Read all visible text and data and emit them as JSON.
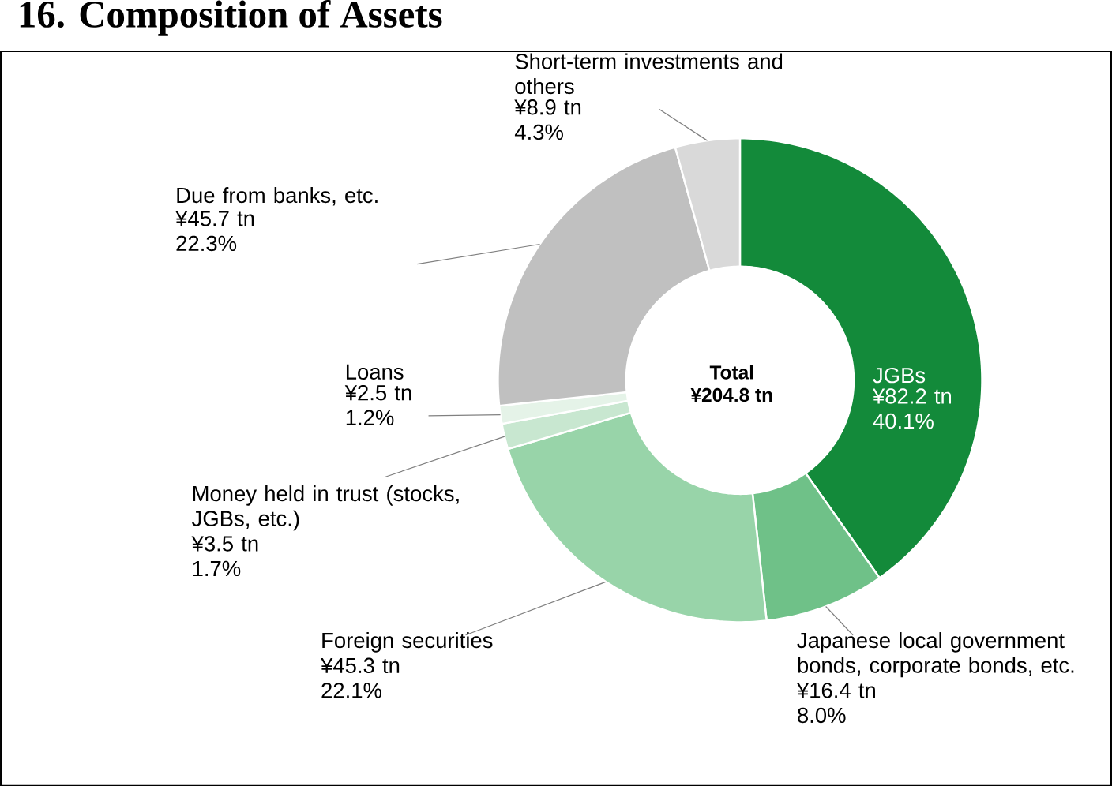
{
  "chart_data": {
    "type": "donut",
    "title": "16. Composition of Assets",
    "categories": [
      "JGBs",
      "Japanese local government bonds, corporate bonds, etc.",
      "Foreign securities",
      "Money held in trust (stocks, JGBs, etc.)",
      "Loans",
      "Due from banks, etc.",
      "Short-term investments and others"
    ],
    "values": [
      40.1,
      8.0,
      22.1,
      1.7,
      1.2,
      22.3,
      4.3
    ],
    "value_labels": [
      "¥82.2 tn 40.1%",
      "¥16.4 tn 8.0%",
      "¥45.3 tn 22.1%",
      "¥3.5 tn 1.7%",
      "¥2.5 tn 1.2%",
      "¥45.7 tn 22.3%",
      "¥8.9 tn 4.3%"
    ],
    "colors": [
      "#138a3a",
      "#6fc188",
      "#98d4a9",
      "#c8e7d0",
      "#e5f3e8",
      "#c0c0c0",
      "#d9d9d9"
    ],
    "annotations": [
      "Total",
      "¥204.8 tn"
    ]
  }
}
